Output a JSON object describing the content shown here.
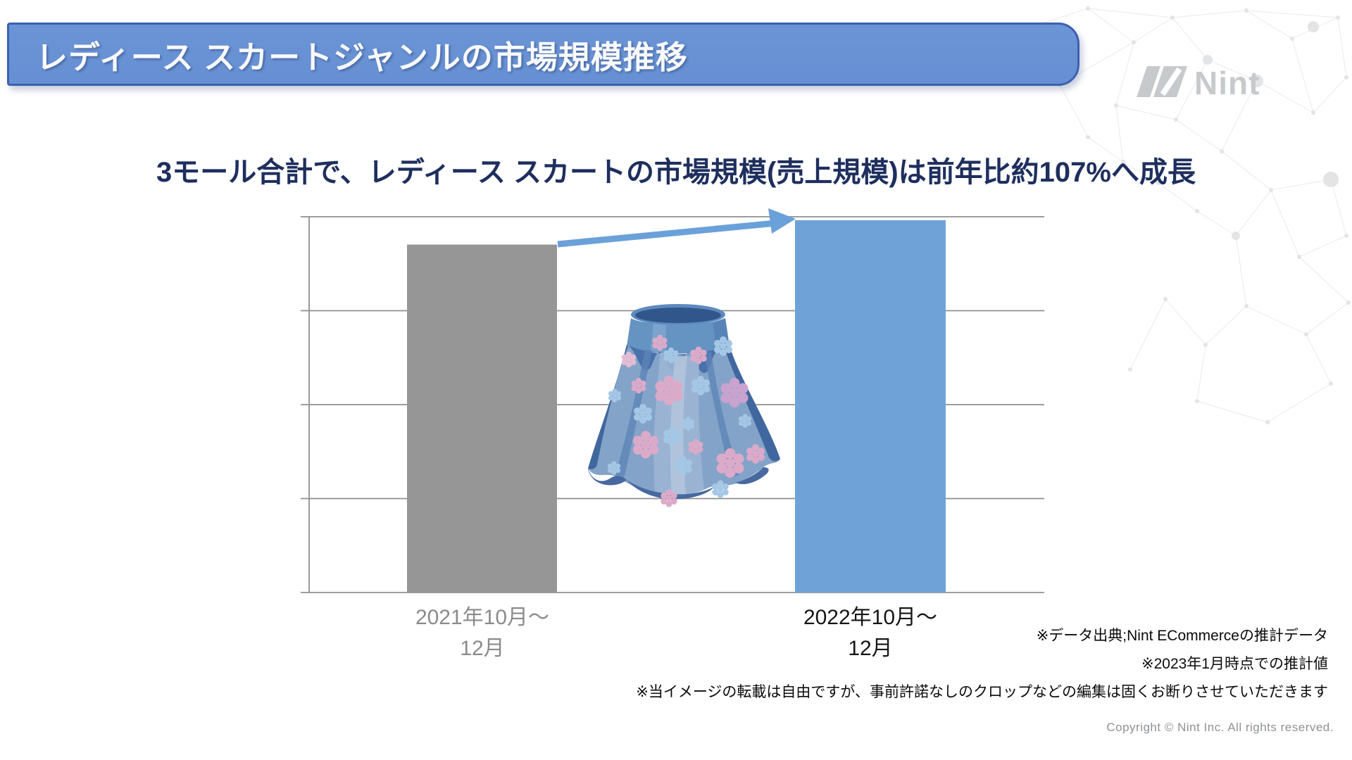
{
  "header": {
    "title": "レディース スカートジャンルの市場規模推移"
  },
  "logo": {
    "text": "Nint"
  },
  "subtitle": "3モール合計で、レディース スカートの市場規模(売上規模)は前年比約107%へ成長",
  "chart_data": {
    "type": "bar",
    "categories": [
      "2021年10月〜12月",
      "2022年10月〜12月"
    ],
    "values": [
      100,
      107
    ],
    "title": "",
    "xlabel": "",
    "ylabel": "",
    "ylim": [
      0,
      108
    ],
    "yticks_visible": false,
    "grid": true,
    "gridline_count": 5,
    "legend": false,
    "bar_colors": [
      "#969696",
      "#6fa3d8"
    ],
    "annotation": "growth-arrow from 2021 bar top to 2022 bar top (前年比約107%)"
  },
  "footnotes": [
    "※データ出典;Nint ECommerceの推計データ",
    "※2023年1月時点での推計値",
    "※当イメージの転載は自由ですが、事前許諾なしのクロップなどの編集は固くお断りさせていただきます"
  ],
  "copyright": "Copyright © Nint Inc. All rights reserved.",
  "colors": {
    "header_fill": "#6b94d6",
    "header_border": "#3d60af",
    "title_text": "#f8f9fb",
    "subtitle_navy": "#1e2f5e",
    "bar_gray": "#969696",
    "bar_blue": "#6fa3d8",
    "arrow_blue": "#6ba1d9",
    "axis_gray": "#8f8f8f",
    "label_gray": "#8b8b8b",
    "label_dark": "#161616",
    "footnote_black": "#0b0b0b",
    "copyright_gray": "#8e9296",
    "logo_gray": "#c7cacd"
  }
}
